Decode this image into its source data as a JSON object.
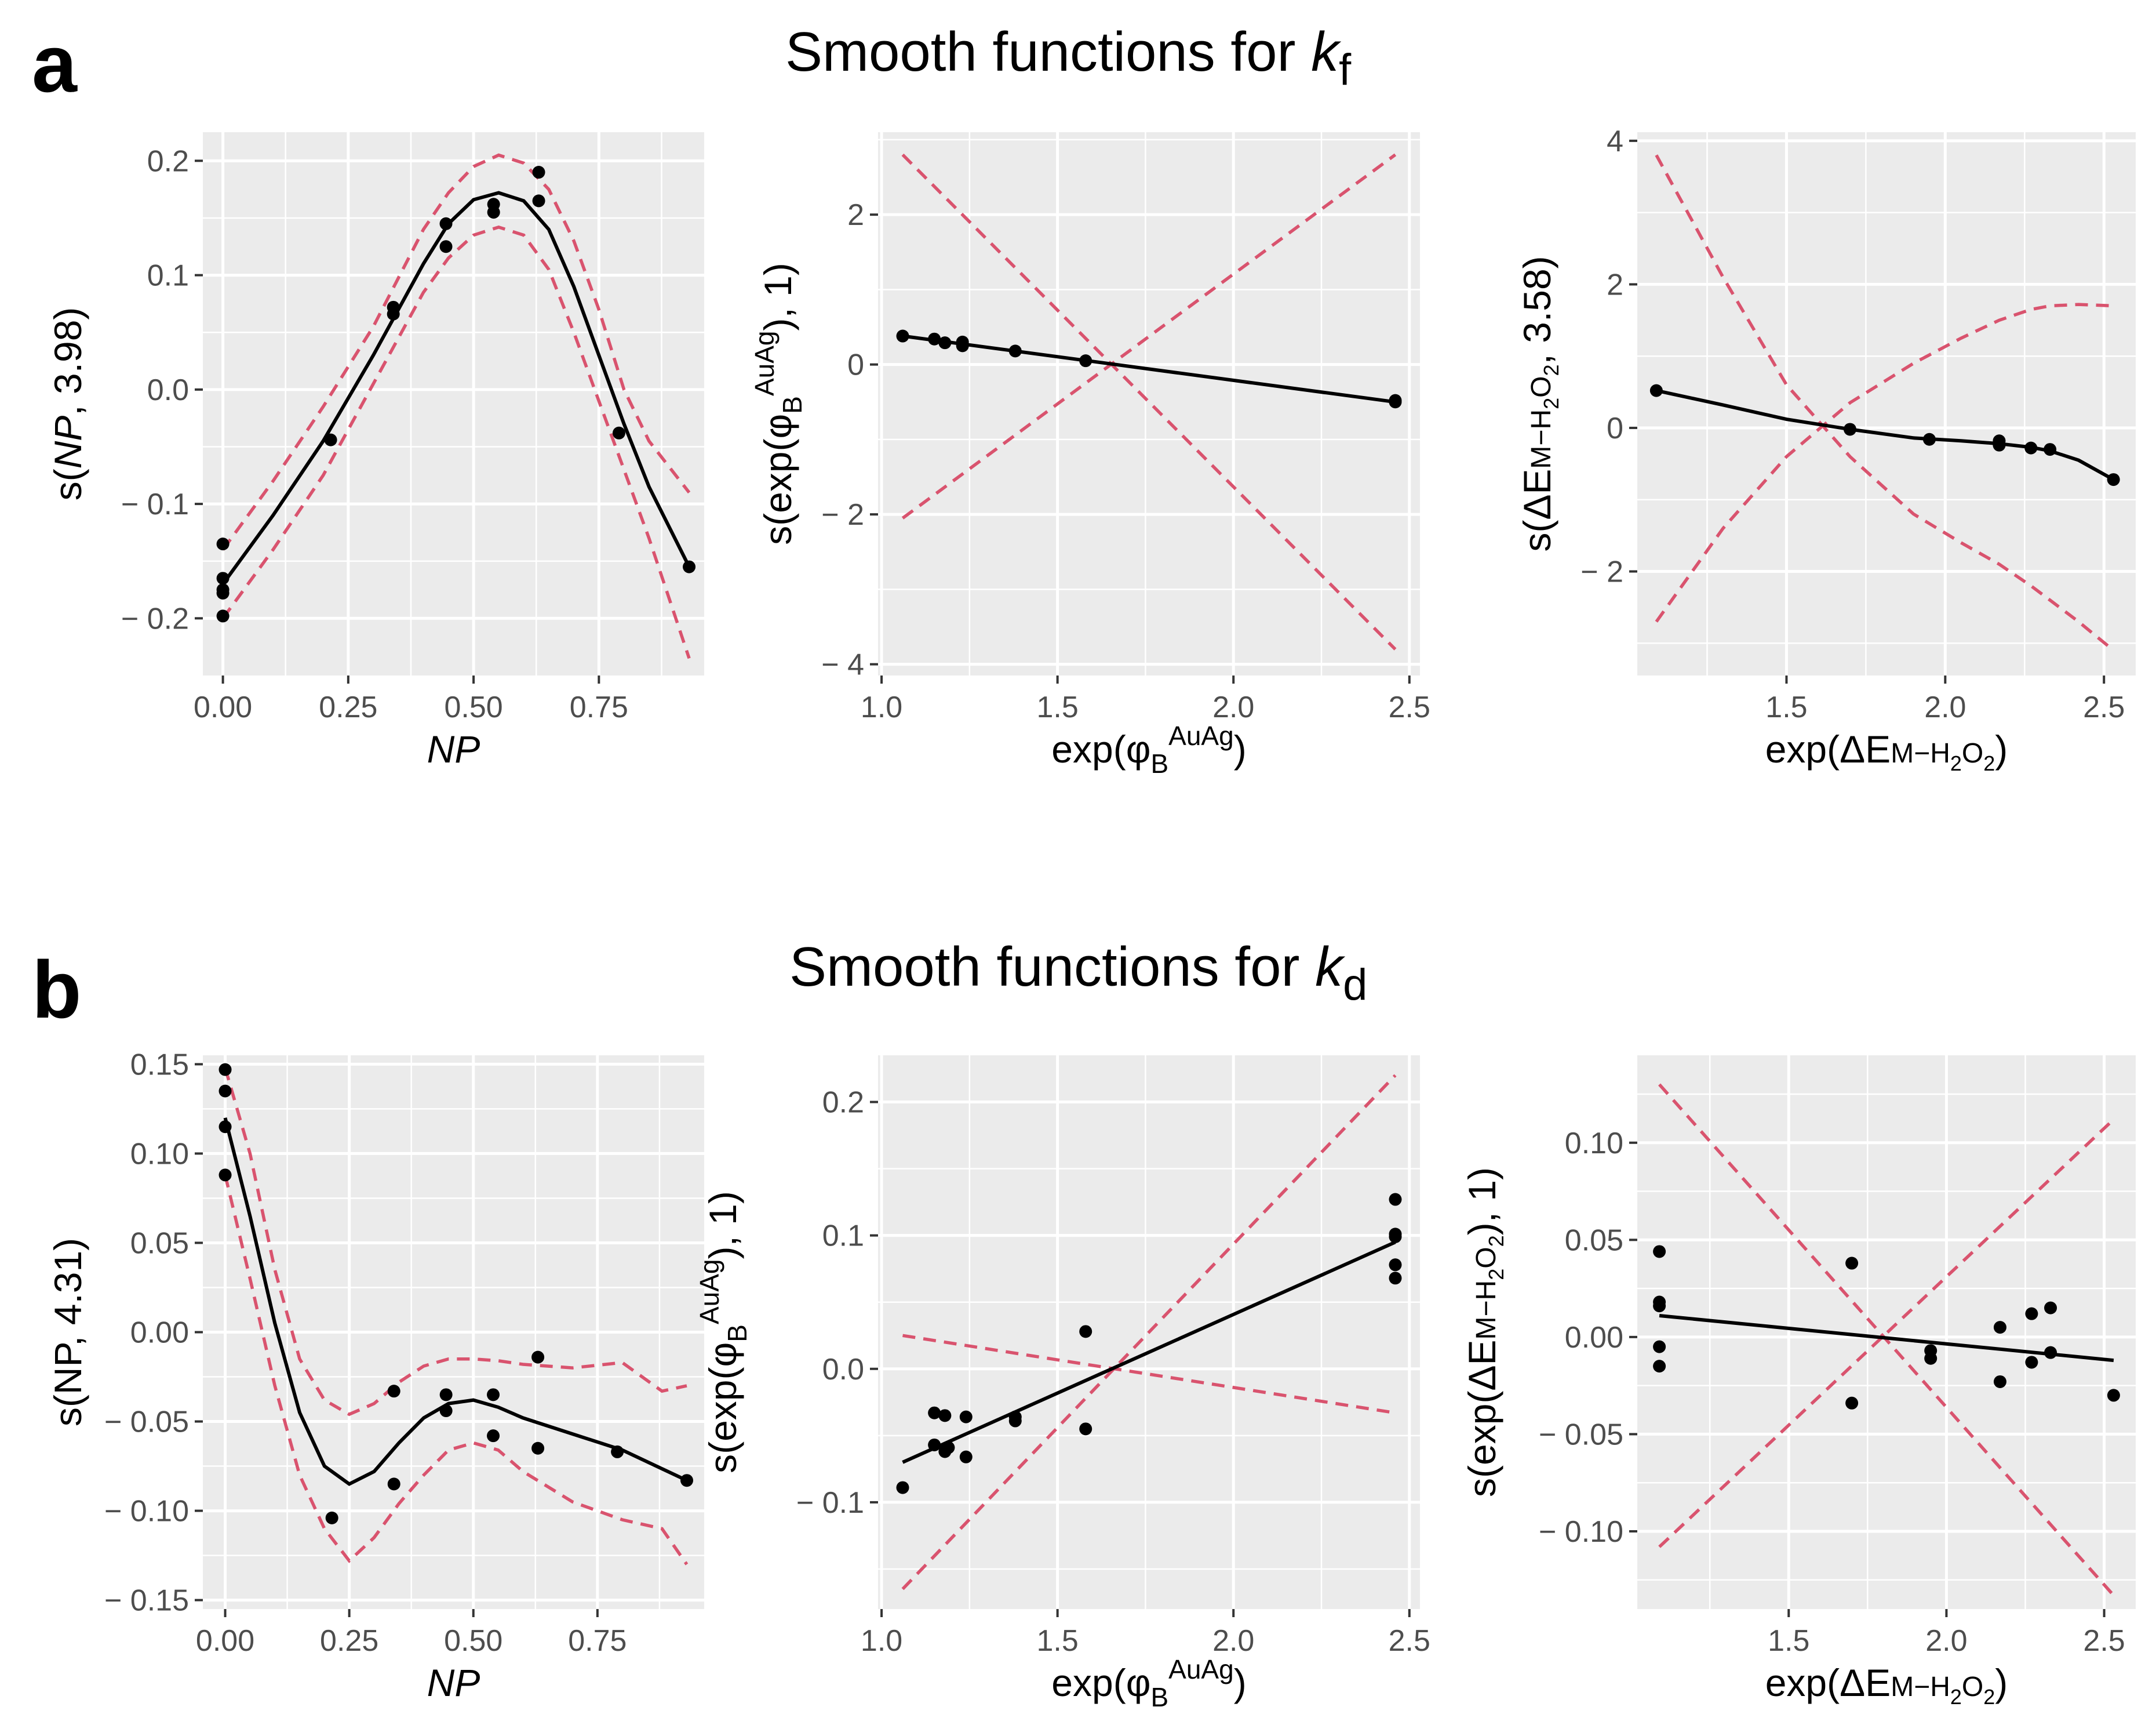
{
  "colors": {
    "panel_bg": "#ebebeb",
    "grid": "#ffffff",
    "fit": "#000000",
    "ci": "#d9536e",
    "points": "#000000"
  },
  "panels": [
    {
      "letter": "a",
      "title": "Smooth functions for ",
      "title_var": "k",
      "title_sub": "f"
    },
    {
      "letter": "b",
      "title": "Smooth functions for ",
      "title_var": "k",
      "title_sub": "d"
    }
  ],
  "chart_data": [
    {
      "type": "line",
      "row": 0,
      "col": 0,
      "ylabel": {
        "pre": "s(",
        "var": "NP",
        "post": ", 3.98)"
      },
      "xlabel": {
        "var": "NP"
      },
      "xlim": [
        -0.04,
        0.96
      ],
      "ylim": [
        -0.25,
        0.225
      ],
      "xticks": [
        0,
        0.25,
        0.5,
        0.75
      ],
      "xtick_labels": [
        "0.00",
        "0.25",
        "0.50",
        "0.75"
      ],
      "yticks": [
        -0.2,
        -0.1,
        0.0,
        0.1,
        0.2
      ],
      "ytick_labels": [
        "− 0.2",
        "− 0.1",
        "0.0",
        "0.1",
        "0.2"
      ],
      "fit": {
        "x": [
          0,
          0.1,
          0.2,
          0.3,
          0.4,
          0.45,
          0.5,
          0.55,
          0.6,
          0.65,
          0.7,
          0.75,
          0.8,
          0.85,
          0.93
        ],
        "y": [
          -0.17,
          -0.11,
          -0.045,
          0.03,
          0.11,
          0.145,
          0.166,
          0.172,
          0.165,
          0.14,
          0.09,
          0.03,
          -0.03,
          -0.085,
          -0.155
        ]
      },
      "upper": {
        "x": [
          0,
          0.1,
          0.2,
          0.3,
          0.4,
          0.45,
          0.5,
          0.55,
          0.6,
          0.65,
          0.7,
          0.75,
          0.8,
          0.85,
          0.93
        ],
        "y": [
          -0.14,
          -0.08,
          -0.015,
          0.055,
          0.14,
          0.172,
          0.195,
          0.205,
          0.198,
          0.175,
          0.13,
          0.07,
          0.0,
          -0.045,
          -0.09
        ]
      },
      "lower": {
        "x": [
          0,
          0.1,
          0.2,
          0.3,
          0.4,
          0.45,
          0.5,
          0.55,
          0.6,
          0.65,
          0.7,
          0.75,
          0.8,
          0.85,
          0.93
        ],
        "y": [
          -0.2,
          -0.14,
          -0.075,
          0.005,
          0.085,
          0.115,
          0.135,
          0.142,
          0.135,
          0.105,
          0.05,
          -0.01,
          -0.07,
          -0.13,
          -0.235
        ]
      },
      "points": {
        "x": [
          0,
          0,
          0,
          0,
          0,
          0.215,
          0.34,
          0.34,
          0.445,
          0.445,
          0.54,
          0.54,
          0.63,
          0.63,
          0.79,
          0.93
        ],
        "y": [
          -0.135,
          -0.165,
          -0.175,
          -0.178,
          -0.198,
          -0.044,
          0.072,
          0.066,
          0.145,
          0.125,
          0.162,
          0.155,
          0.19,
          0.165,
          -0.038,
          -0.155
        ]
      }
    },
    {
      "type": "line",
      "row": 0,
      "col": 1,
      "ylabel": {
        "pre": "s(exp(φ",
        "sub": "B",
        "sup": "AuAg",
        "post": "), 1)"
      },
      "xlabel": {
        "pre": "exp(φ",
        "sub": "B",
        "sup": "AuAg",
        "post": ")"
      },
      "xlim": [
        0.99,
        2.53
      ],
      "ylim": [
        -4.15,
        3.1
      ],
      "xticks": [
        1,
        1.5,
        2,
        2.5
      ],
      "xtick_labels": [
        "1.0",
        "1.5",
        "2.0",
        "2.5"
      ],
      "yticks": [
        -4,
        -2,
        0,
        2
      ],
      "ytick_labels": [
        "− 4",
        "− 2",
        "0",
        "2"
      ],
      "fit": {
        "x": [
          1.06,
          2.46
        ],
        "y": [
          0.38,
          -0.5
        ]
      },
      "upper": {
        "x": [
          1.06,
          2.46
        ],
        "y": [
          2.8,
          -3.8
        ]
      },
      "lower": {
        "x": [
          1.06,
          2.46
        ],
        "y": [
          -2.05,
          2.8
        ]
      },
      "points": {
        "x": [
          1.06,
          1.15,
          1.18,
          1.23,
          1.23,
          1.38,
          1.58,
          2.46,
          2.46
        ],
        "y": [
          0.38,
          0.34,
          0.29,
          0.3,
          0.25,
          0.18,
          0.05,
          -0.48,
          -0.5
        ]
      }
    },
    {
      "type": "line",
      "row": 0,
      "col": 2,
      "ylabel": {
        "pre": "s(ΔE",
        "sub_sc": "M−H",
        "sub2": "2",
        "sub_sc2": "O",
        "sub3": "2",
        "post": ", 3.58)"
      },
      "xlabel": {
        "pre": "exp(ΔE",
        "sub_sc": "M−H",
        "sub2": "2",
        "sub_sc2": "O",
        "sub3": "2",
        "post": ")"
      },
      "xlim": [
        1.03,
        2.6
      ],
      "ylim": [
        -3.45,
        4.12
      ],
      "xticks": [
        1.5,
        2,
        2.5
      ],
      "xtick_labels": [
        "1.5",
        "2.0",
        "2.5"
      ],
      "yticks": [
        -2,
        0,
        2,
        4
      ],
      "ytick_labels": [
        "− 2",
        "0",
        "2",
        "4"
      ],
      "fit": {
        "x": [
          1.09,
          1.3,
          1.5,
          1.7,
          1.9,
          2.05,
          2.17,
          2.27,
          2.33,
          2.42,
          2.53
        ],
        "y": [
          0.52,
          0.32,
          0.12,
          -0.02,
          -0.14,
          -0.18,
          -0.22,
          -0.27,
          -0.32,
          -0.45,
          -0.72
        ]
      },
      "upper": {
        "x": [
          1.09,
          1.3,
          1.5,
          1.7,
          1.9,
          2.05,
          2.17,
          2.27,
          2.33,
          2.42,
          2.53
        ],
        "y": [
          3.8,
          2.1,
          0.6,
          -0.4,
          -1.2,
          -1.6,
          -1.9,
          -2.2,
          -2.4,
          -2.7,
          -3.1
        ]
      },
      "lower": {
        "x": [
          1.09,
          1.3,
          1.5,
          1.7,
          1.9,
          2.05,
          2.17,
          2.27,
          2.33,
          2.42,
          2.53
        ],
        "y": [
          -2.7,
          -1.4,
          -0.4,
          0.35,
          0.9,
          1.25,
          1.5,
          1.65,
          1.7,
          1.72,
          1.7
        ]
      },
      "points": {
        "x": [
          1.09,
          1.7,
          1.95,
          2.17,
          2.17,
          2.27,
          2.33,
          2.53
        ],
        "y": [
          0.52,
          -0.02,
          -0.16,
          -0.18,
          -0.24,
          -0.28,
          -0.3,
          -0.72
        ]
      }
    },
    {
      "type": "line",
      "row": 1,
      "col": 0,
      "ylabel": {
        "pre": "s(NP, 4.31)"
      },
      "xlabel": {
        "var": "NP"
      },
      "xlim": [
        -0.045,
        0.965
      ],
      "ylim": [
        -0.155,
        0.155
      ],
      "xticks": [
        0,
        0.25,
        0.5,
        0.75
      ],
      "xtick_labels": [
        "0.00",
        "0.25",
        "0.50",
        "0.75"
      ],
      "yticks": [
        -0.15,
        -0.1,
        -0.05,
        0.0,
        0.05,
        0.1,
        0.15
      ],
      "ytick_labels": [
        "− 0.15",
        "− 0.10",
        "− 0.05",
        "0.00",
        "0.05",
        "0.10",
        "0.15"
      ],
      "fit": {
        "x": [
          0,
          0.05,
          0.1,
          0.15,
          0.2,
          0.25,
          0.3,
          0.35,
          0.4,
          0.45,
          0.5,
          0.55,
          0.6,
          0.7,
          0.8,
          0.93
        ],
        "y": [
          0.12,
          0.065,
          0.005,
          -0.045,
          -0.075,
          -0.085,
          -0.078,
          -0.062,
          -0.048,
          -0.04,
          -0.038,
          -0.042,
          -0.048,
          -0.057,
          -0.066,
          -0.083
        ]
      },
      "upper": {
        "x": [
          0,
          0.05,
          0.1,
          0.15,
          0.2,
          0.25,
          0.3,
          0.35,
          0.4,
          0.45,
          0.5,
          0.55,
          0.6,
          0.7,
          0.8,
          0.88,
          0.93
        ],
        "y": [
          0.148,
          0.1,
          0.035,
          -0.015,
          -0.038,
          -0.046,
          -0.04,
          -0.028,
          -0.019,
          -0.015,
          -0.015,
          -0.016,
          -0.018,
          -0.02,
          -0.017,
          -0.033,
          -0.03
        ]
      },
      "lower": {
        "x": [
          0,
          0.05,
          0.1,
          0.15,
          0.2,
          0.25,
          0.3,
          0.35,
          0.4,
          0.45,
          0.5,
          0.55,
          0.6,
          0.7,
          0.8,
          0.88,
          0.93
        ],
        "y": [
          0.088,
          0.03,
          -0.03,
          -0.08,
          -0.11,
          -0.128,
          -0.115,
          -0.096,
          -0.08,
          -0.066,
          -0.062,
          -0.066,
          -0.078,
          -0.095,
          -0.105,
          -0.11,
          -0.13
        ]
      },
      "points": {
        "x": [
          0,
          0,
          0,
          0,
          0.215,
          0.34,
          0.34,
          0.445,
          0.445,
          0.54,
          0.54,
          0.63,
          0.63,
          0.79,
          0.93
        ],
        "y": [
          0.147,
          0.135,
          0.115,
          0.088,
          -0.104,
          -0.033,
          -0.085,
          -0.035,
          -0.044,
          -0.035,
          -0.058,
          -0.014,
          -0.065,
          -0.067,
          -0.083
        ]
      }
    },
    {
      "type": "line",
      "row": 1,
      "col": 1,
      "ylabel": {
        "pre": "s(exp(φ",
        "sub": "B",
        "sup": "AuAg",
        "post": "), 1)"
      },
      "xlabel": {
        "pre": "exp(φ",
        "sub": "B",
        "sup": "AuAg",
        "post": ")"
      },
      "xlim": [
        0.99,
        2.53
      ],
      "ylim": [
        -0.18,
        0.235
      ],
      "xticks": [
        1,
        1.5,
        2,
        2.5
      ],
      "xtick_labels": [
        "1.0",
        "1.5",
        "2.0",
        "2.5"
      ],
      "yticks": [
        -0.1,
        0.0,
        0.1,
        0.2
      ],
      "ytick_labels": [
        "− 0.1",
        "0.0",
        "0.1",
        "0.2"
      ],
      "fit": {
        "x": [
          1.06,
          2.46
        ],
        "y": [
          -0.07,
          0.095
        ]
      },
      "upper": {
        "x": [
          1.06,
          2.46
        ],
        "y": [
          -0.165,
          0.22
        ]
      },
      "lower": {
        "x": [
          1.06,
          2.46
        ],
        "y": [
          0.025,
          -0.033
        ]
      },
      "points": {
        "x": [
          1.06,
          1.15,
          1.15,
          1.18,
          1.18,
          1.19,
          1.24,
          1.24,
          1.38,
          1.38,
          1.58,
          1.58,
          2.46,
          2.46,
          2.46,
          2.46,
          2.46
        ],
        "y": [
          -0.089,
          -0.033,
          -0.057,
          -0.035,
          -0.062,
          -0.059,
          -0.036,
          -0.066,
          -0.036,
          -0.039,
          0.028,
          -0.045,
          0.127,
          0.101,
          0.099,
          0.078,
          0.068
        ]
      }
    },
    {
      "type": "line",
      "row": 1,
      "col": 2,
      "ylabel": {
        "pre": "s(exp(ΔE",
        "sub_sc": "M−H",
        "sub2": "2",
        "sub_sc2": "O",
        "sub3": "2",
        "post": "), 1)"
      },
      "xlabel": {
        "pre": "exp(ΔE",
        "sub_sc": "M−H",
        "sub2": "2",
        "sub_sc2": "O",
        "sub3": "2",
        "post": ")"
      },
      "xlim": [
        1.02,
        2.6
      ],
      "ylim": [
        -0.14,
        0.145
      ],
      "xticks": [
        1.5,
        2,
        2.5
      ],
      "xtick_labels": [
        "1.5",
        "2.0",
        "2.5"
      ],
      "yticks": [
        -0.1,
        -0.05,
        0.0,
        0.05,
        0.1
      ],
      "ytick_labels": [
        "− 0.10",
        "− 0.05",
        "0.00",
        "0.05",
        "0.10"
      ],
      "fit": {
        "x": [
          1.09,
          2.53
        ],
        "y": [
          0.011,
          -0.012
        ]
      },
      "upper": {
        "x": [
          1.09,
          2.53
        ],
        "y": [
          0.13,
          -0.133
        ]
      },
      "lower": {
        "x": [
          1.09,
          2.53
        ],
        "y": [
          -0.108,
          0.112
        ]
      },
      "points": {
        "x": [
          1.09,
          1.09,
          1.09,
          1.09,
          1.09,
          1.7,
          1.7,
          1.95,
          1.95,
          2.17,
          2.17,
          2.27,
          2.27,
          2.33,
          2.33,
          2.53
        ],
        "y": [
          0.044,
          0.018,
          0.016,
          -0.005,
          -0.015,
          0.038,
          -0.034,
          -0.007,
          -0.011,
          0.005,
          -0.023,
          0.012,
          -0.013,
          0.015,
          -0.008,
          -0.03
        ]
      }
    }
  ]
}
